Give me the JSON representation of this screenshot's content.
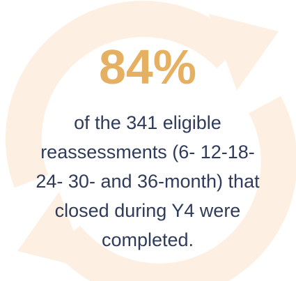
{
  "stat": "84%",
  "description_lines": [
    "of the 341 eligible",
    "reassessments (6- 12-18-",
    "24- 30- and 36-month) that",
    "closed during Y4 were",
    "completed."
  ]
}
